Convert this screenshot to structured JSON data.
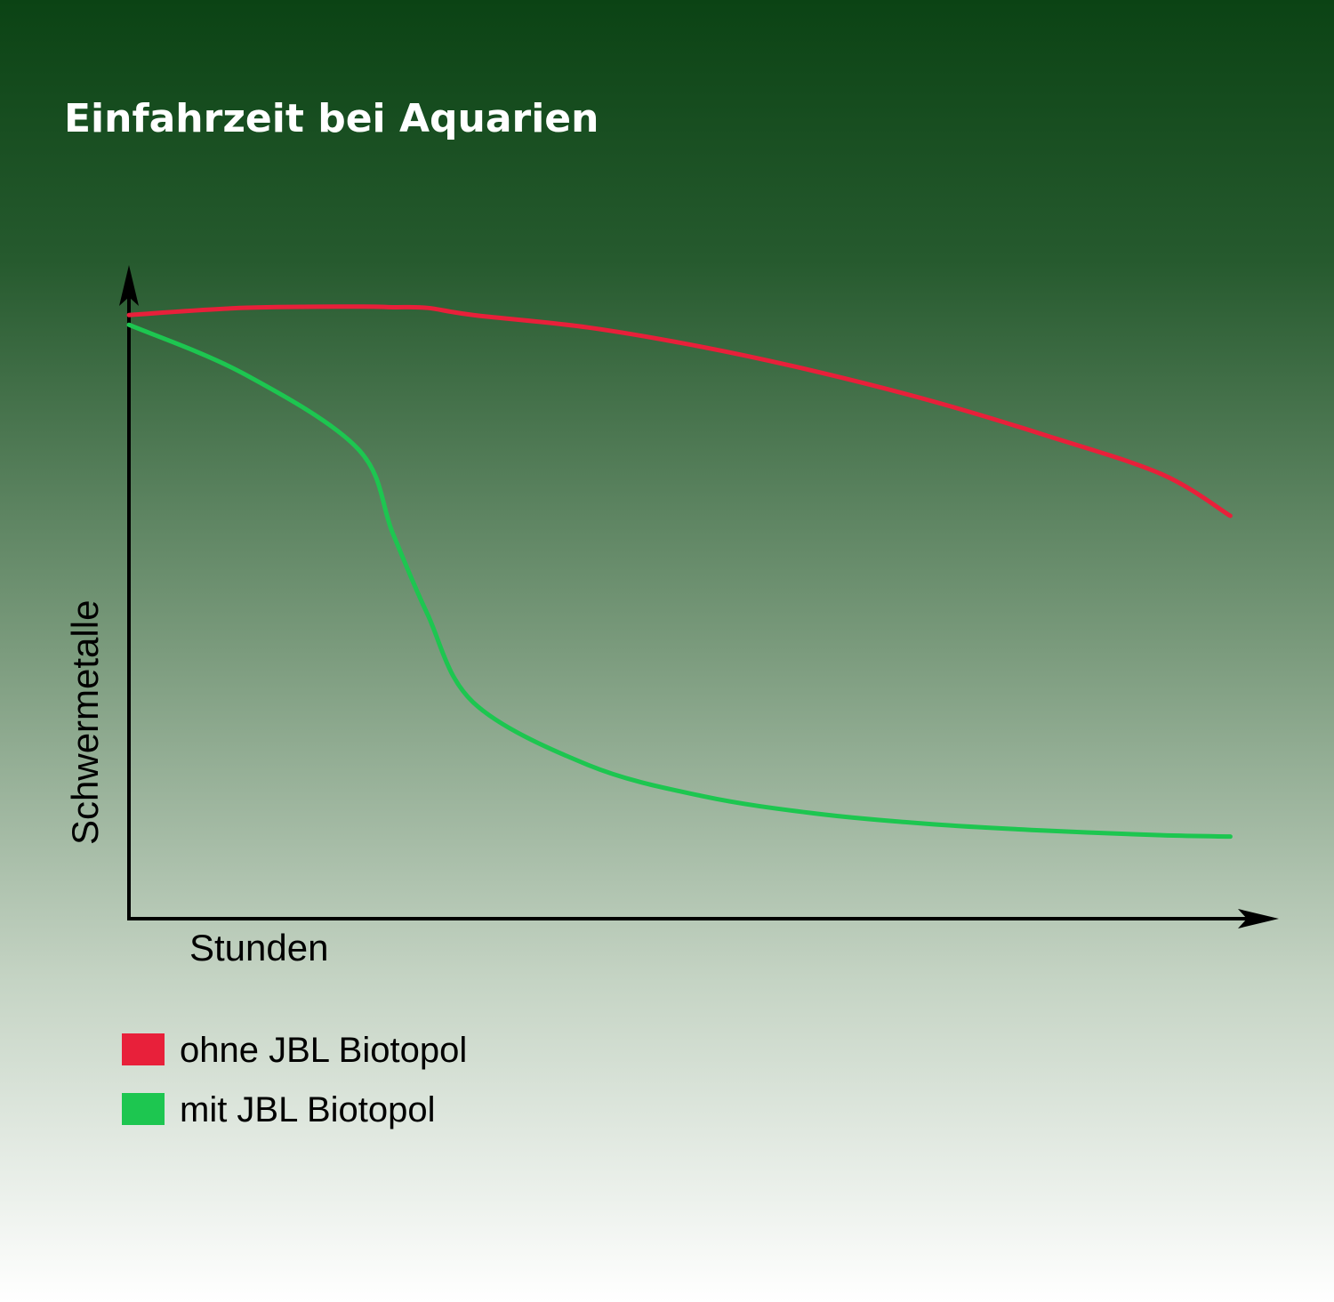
{
  "chart_data": {
    "type": "line",
    "title": "Einfahrzeit bei Aquarien",
    "x_label": "Stunden",
    "y_label": "Schwermetalle",
    "x": [
      0,
      10,
      20,
      23,
      26,
      30,
      40,
      50,
      60,
      70,
      80,
      90,
      96
    ],
    "xlim": [
      0,
      100
    ],
    "ylim": [
      0,
      100
    ],
    "series": [
      {
        "name": "ohne JBL Biotopol",
        "color": "#e8203a",
        "values": [
          92.6,
          93.7,
          93.9,
          93.8,
          93.7,
          92.6,
          90.7,
          87.7,
          83.9,
          79.4,
          74.1,
          68.2,
          61.8
        ]
      },
      {
        "name": "mit JBL Biotopol",
        "color": "#1dc650",
        "values": [
          91.1,
          83.6,
          72.0,
          59.1,
          46.8,
          33.2,
          23.6,
          18.8,
          16.1,
          14.5,
          13.5,
          12.8,
          12.6
        ]
      }
    ]
  }
}
